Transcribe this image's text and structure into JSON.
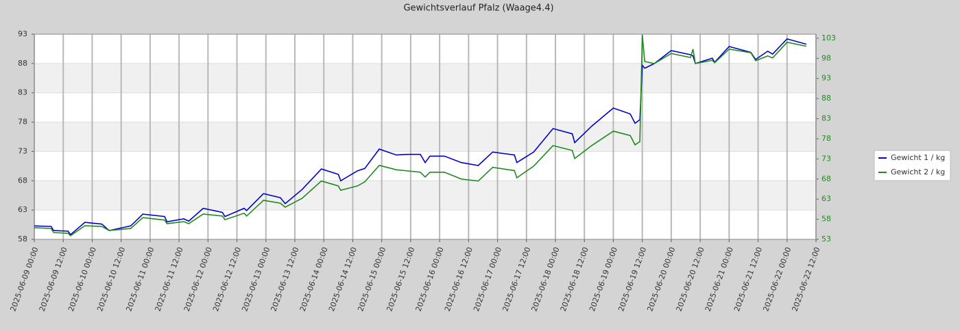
{
  "chart_data": {
    "type": "line",
    "title": "Gewichtsverlauf Pfalz (Waage4.4)",
    "x": [
      "2025-06-09 00:00",
      "2025-06-09 07:00",
      "2025-06-09 08:00",
      "2025-06-09 14:00",
      "2025-06-09 15:00",
      "2025-06-09 21:00",
      "2025-06-10 04:00",
      "2025-06-10 07:00",
      "2025-06-10 16:00",
      "2025-06-10 21:00",
      "2025-06-11 06:00",
      "2025-06-11 07:00",
      "2025-06-11 14:00",
      "2025-06-11 16:00",
      "2025-06-11 22:00",
      "2025-06-12 06:00",
      "2025-06-12 07:00",
      "2025-06-12 15:00",
      "2025-06-12 16:00",
      "2025-06-12 23:00",
      "2025-06-13 06:00",
      "2025-06-13 08:00",
      "2025-06-13 15:00",
      "2025-06-13 23:00",
      "2025-06-14 06:00",
      "2025-06-14 07:00",
      "2025-06-14 14:00",
      "2025-06-14 17:00",
      "2025-06-14 23:00",
      "2025-06-15 06:00",
      "2025-06-15 11:00",
      "2025-06-15 16:00",
      "2025-06-15 18:00",
      "2025-06-15 20:00",
      "2025-06-16 02:00",
      "2025-06-16 09:00",
      "2025-06-16 16:00",
      "2025-06-16 22:00",
      "2025-06-17 07:00",
      "2025-06-17 08:00",
      "2025-06-17 15:00",
      "2025-06-17 23:00",
      "2025-06-18 07:00",
      "2025-06-18 08:00",
      "2025-06-18 15:00",
      "2025-06-19 00:00",
      "2025-06-19 07:00",
      "2025-06-19 09:00",
      "2025-06-19 11:00",
      "2025-06-19 12:00",
      "2025-06-19 13:00",
      "2025-06-19 17:00",
      "2025-06-20 00:00",
      "2025-06-20 08:00",
      "2025-06-20 09:00",
      "2025-06-20 10:00",
      "2025-06-20 17:00",
      "2025-06-20 18:00",
      "2025-06-21 00:00",
      "2025-06-21 09:00",
      "2025-06-21 11:00",
      "2025-06-21 16:00",
      "2025-06-21 18:00",
      "2025-06-22 00:00",
      "2025-06-22 08:00"
    ],
    "series": [
      {
        "name": "Gewicht 1 / kg",
        "color": "#0000cc",
        "values": [
          60.3,
          60.2,
          59.5,
          59.4,
          58.8,
          60.9,
          60.6,
          59.5,
          60.3,
          62.3,
          61.9,
          61.0,
          61.5,
          61.1,
          63.3,
          62.6,
          61.9,
          63.3,
          62.9,
          65.8,
          65.1,
          64.1,
          66.5,
          70.0,
          69.1,
          68.0,
          69.7,
          70.1,
          73.4,
          72.4,
          72.5,
          72.5,
          71.1,
          72.2,
          72.2,
          71.1,
          70.6,
          72.9,
          72.4,
          71.1,
          72.9,
          76.9,
          76.0,
          74.5,
          77.3,
          80.4,
          79.4,
          77.8,
          78.4,
          87.7,
          87.2,
          88.0,
          90.2,
          89.5,
          89.3,
          88.0,
          88.9,
          88.2,
          90.9,
          89.9,
          88.7,
          90.1,
          89.6,
          92.2,
          91.3
        ]
      },
      {
        "name": "Gewicht 2 / kg",
        "color": "#1f8a1f",
        "axis": "y2",
        "values": [
          55.9,
          55.7,
          54.7,
          54.5,
          53.9,
          56.4,
          56.2,
          55.2,
          55.7,
          58.4,
          57.8,
          56.9,
          57.4,
          56.9,
          59.3,
          58.8,
          57.9,
          59.5,
          58.8,
          62.7,
          62.0,
          61.0,
          63.2,
          67.5,
          66.3,
          65.2,
          66.3,
          67.3,
          71.4,
          70.3,
          70.0,
          69.7,
          68.5,
          69.7,
          69.7,
          68.0,
          67.5,
          70.9,
          70.1,
          68.3,
          71.2,
          76.3,
          75.1,
          73.1,
          76.3,
          79.9,
          78.8,
          76.5,
          77.3,
          103.8,
          97.2,
          96.7,
          99.2,
          98.2,
          100.3,
          96.7,
          97.5,
          96.9,
          100.3,
          99.4,
          97.4,
          98.6,
          98.1,
          102.0,
          101.0
        ]
      }
    ],
    "xlim": [
      "2025-06-09 00:00",
      "2025-06-22 12:00"
    ],
    "xticks": [
      "2025-06-09 00:00",
      "2025-06-09 12:00",
      "2025-06-10 00:00",
      "2025-06-10 12:00",
      "2025-06-11 00:00",
      "2025-06-11 12:00",
      "2025-06-12 00:00",
      "2025-06-12 12:00",
      "2025-06-13 00:00",
      "2025-06-13 12:00",
      "2025-06-14 00:00",
      "2025-06-14 12:00",
      "2025-06-15 00:00",
      "2025-06-15 12:00",
      "2025-06-16 00:00",
      "2025-06-16 12:00",
      "2025-06-17 00:00",
      "2025-06-17 12:00",
      "2025-06-18 00:00",
      "2025-06-18 12:00",
      "2025-06-19 00:00",
      "2025-06-19 12:00",
      "2025-06-20 00:00",
      "2025-06-20 12:00",
      "2025-06-21 00:00",
      "2025-06-21 12:00",
      "2025-06-22 00:00",
      "2025-06-22 12:00"
    ],
    "ylim": [
      58,
      93
    ],
    "yticks": [
      58,
      63,
      68,
      73,
      78,
      83,
      88,
      93
    ],
    "y2lim": [
      53,
      104
    ],
    "y2ticks": [
      53,
      58,
      63,
      68,
      73,
      78,
      83,
      88,
      93,
      98,
      103
    ],
    "grid": true,
    "legend": "right"
  }
}
